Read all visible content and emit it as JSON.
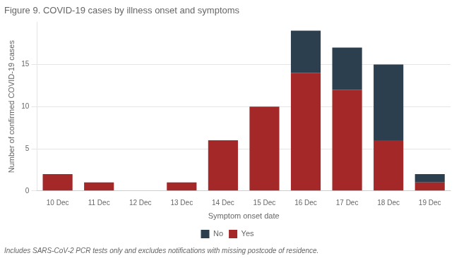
{
  "chart_data": {
    "type": "bar",
    "title": "Figure 9. COVID-19 cases by illness onset and symptoms",
    "xlabel": "Symptom onset date",
    "ylabel": "Number of confirmed COVID-19 cases",
    "footnote": "Includes SARS-CoV-2 PCR tests only and excludes notifications with missing postcode of residence.",
    "categories": [
      "10 Dec",
      "11 Dec",
      "12 Dec",
      "13 Dec",
      "14 Dec",
      "15 Dec",
      "16 Dec",
      "17 Dec",
      "18 Dec",
      "19 Dec"
    ],
    "series": [
      {
        "name": "Yes",
        "color": "#A52828",
        "values": [
          2,
          1,
          0,
          1,
          6,
          10,
          14,
          12,
          6,
          1
        ]
      },
      {
        "name": "No",
        "color": "#2B3F4E",
        "values": [
          0,
          0,
          0,
          0,
          0,
          0,
          5,
          5,
          9,
          1
        ]
      }
    ],
    "stacked": true,
    "ylim": [
      0,
      20
    ],
    "yticks": [
      0,
      5,
      10,
      15
    ],
    "grid": true,
    "legend": "bottom"
  }
}
